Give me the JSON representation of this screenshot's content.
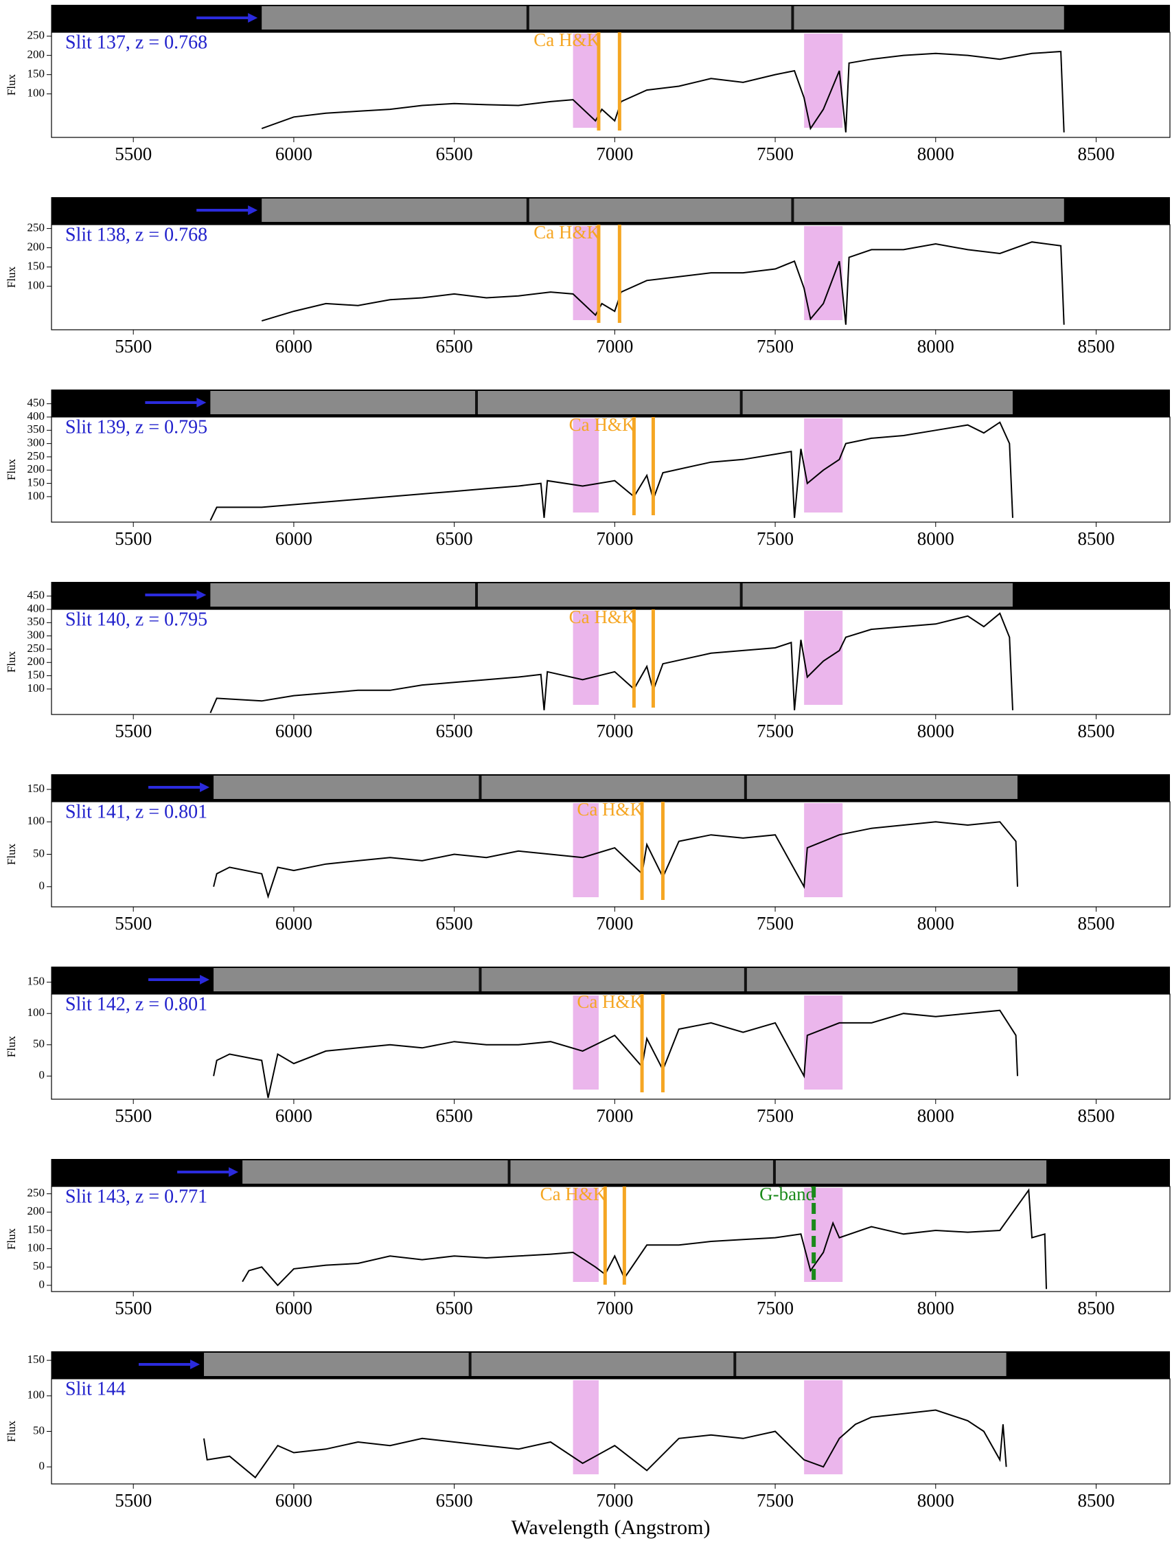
{
  "chart_data": [
    {
      "type": "line",
      "title": "Slit 137, z = 0.768",
      "ylabel": "Flux",
      "color": "#000000",
      "x": [
        5900,
        6000,
        6100,
        6200,
        6300,
        6400,
        6500,
        6600,
        6700,
        6800,
        6870,
        6940,
        6960,
        7000,
        7020,
        7100,
        7200,
        7300,
        7400,
        7500,
        7560,
        7590,
        7610,
        7650,
        7700,
        7720,
        7730,
        7800,
        7900,
        8000,
        8100,
        8200,
        8300,
        8390,
        8400
      ],
      "values": [
        10,
        40,
        50,
        55,
        60,
        70,
        75,
        72,
        70,
        80,
        85,
        30,
        60,
        30,
        80,
        110,
        120,
        140,
        130,
        150,
        160,
        90,
        10,
        60,
        160,
        0,
        180,
        190,
        200,
        205,
        200,
        190,
        205,
        210,
        0
      ],
      "xlim": [
        5245,
        8730
      ],
      "xticks": [
        5500,
        6000,
        6500,
        7000,
        7500,
        8000,
        8500
      ],
      "ylim": [
        -13,
        260
      ],
      "yticks": [
        100,
        150,
        200,
        250
      ],
      "bands": [
        [
          6870,
          6950
        ],
        [
          7590,
          7710
        ]
      ],
      "ca_hk": {
        "label": "Ca H&K",
        "lines": [
          6950,
          7015
        ]
      }
    },
    {
      "type": "line",
      "title": "Slit 138, z = 0.768",
      "ylabel": "Flux",
      "color": "#000000",
      "x": [
        5900,
        6000,
        6100,
        6200,
        6300,
        6400,
        6500,
        6600,
        6700,
        6800,
        6870,
        6940,
        6960,
        7000,
        7020,
        7100,
        7200,
        7300,
        7400,
        7500,
        7560,
        7590,
        7610,
        7650,
        7700,
        7720,
        7730,
        7800,
        7900,
        8000,
        8100,
        8200,
        8300,
        8390,
        8400
      ],
      "values": [
        10,
        35,
        55,
        50,
        65,
        70,
        80,
        70,
        75,
        85,
        80,
        25,
        55,
        35,
        85,
        115,
        125,
        135,
        135,
        145,
        165,
        95,
        15,
        55,
        165,
        0,
        175,
        195,
        195,
        210,
        195,
        185,
        215,
        205,
        0
      ],
      "xlim": [
        5245,
        8730
      ],
      "xticks": [
        5500,
        6000,
        6500,
        7000,
        7500,
        8000,
        8500
      ],
      "ylim": [
        -13,
        260
      ],
      "yticks": [
        100,
        150,
        200,
        250
      ],
      "bands": [
        [
          6870,
          6950
        ],
        [
          7590,
          7710
        ]
      ],
      "ca_hk": {
        "label": "Ca H&K",
        "lines": [
          6950,
          7015
        ]
      }
    },
    {
      "type": "line",
      "title": "Slit 139, z = 0.795",
      "ylabel": "Flux",
      "color": "#000000",
      "x": [
        5740,
        5760,
        5900,
        6000,
        6100,
        6200,
        6300,
        6400,
        6500,
        6600,
        6700,
        6770,
        6780,
        6790,
        6900,
        7000,
        7060,
        7100,
        7120,
        7150,
        7300,
        7400,
        7500,
        7550,
        7560,
        7580,
        7600,
        7650,
        7700,
        7720,
        7800,
        7900,
        8000,
        8100,
        8150,
        8200,
        8230,
        8240
      ],
      "values": [
        10,
        60,
        60,
        70,
        80,
        90,
        100,
        110,
        120,
        130,
        140,
        150,
        20,
        160,
        140,
        160,
        100,
        180,
        90,
        190,
        230,
        240,
        260,
        270,
        20,
        280,
        150,
        200,
        240,
        300,
        320,
        330,
        350,
        370,
        340,
        380,
        300,
        20
      ],
      "xlim": [
        5245,
        8730
      ],
      "xticks": [
        5500,
        6000,
        6500,
        7000,
        7500,
        8000,
        8500
      ],
      "ylim": [
        4,
        400
      ],
      "yticks": [
        100,
        150,
        200,
        250,
        300,
        350,
        400,
        450
      ],
      "bands": [
        [
          6870,
          6950
        ],
        [
          7590,
          7710
        ]
      ],
      "ca_hk": {
        "label": "Ca H&K",
        "lines": [
          7060,
          7120
        ]
      }
    },
    {
      "type": "line",
      "title": "Slit 140, z = 0.795",
      "ylabel": "Flux",
      "color": "#000000",
      "x": [
        5740,
        5760,
        5900,
        6000,
        6100,
        6200,
        6300,
        6400,
        6500,
        6600,
        6700,
        6770,
        6780,
        6790,
        6900,
        7000,
        7060,
        7100,
        7120,
        7150,
        7300,
        7400,
        7500,
        7550,
        7560,
        7580,
        7600,
        7650,
        7700,
        7720,
        7800,
        7900,
        8000,
        8100,
        8150,
        8200,
        8230,
        8240
      ],
      "values": [
        10,
        65,
        55,
        75,
        85,
        95,
        95,
        115,
        125,
        135,
        145,
        155,
        20,
        165,
        135,
        165,
        100,
        185,
        95,
        195,
        235,
        245,
        255,
        275,
        20,
        285,
        145,
        205,
        245,
        295,
        325,
        335,
        345,
        375,
        335,
        385,
        295,
        20
      ],
      "xlim": [
        5245,
        8730
      ],
      "xticks": [
        5500,
        6000,
        6500,
        7000,
        7500,
        8000,
        8500
      ],
      "ylim": [
        4,
        400
      ],
      "yticks": [
        100,
        150,
        200,
        250,
        300,
        350,
        400,
        450
      ],
      "bands": [
        [
          6870,
          6950
        ],
        [
          7590,
          7710
        ]
      ],
      "ca_hk": {
        "label": "Ca H&K",
        "lines": [
          7060,
          7120
        ]
      }
    },
    {
      "type": "line",
      "title": "Slit 141, z = 0.801",
      "ylabel": "Flux",
      "color": "#000000",
      "x": [
        5750,
        5760,
        5800,
        5900,
        5920,
        5950,
        6000,
        6100,
        6200,
        6300,
        6400,
        6500,
        6600,
        6700,
        6800,
        6900,
        7000,
        7085,
        7100,
        7150,
        7200,
        7300,
        7400,
        7500,
        7590,
        7600,
        7700,
        7800,
        7900,
        8000,
        8100,
        8200,
        8250,
        8255
      ],
      "values": [
        0,
        20,
        30,
        20,
        -15,
        30,
        25,
        35,
        40,
        45,
        40,
        50,
        45,
        55,
        50,
        45,
        60,
        20,
        65,
        15,
        70,
        80,
        75,
        80,
        0,
        60,
        80,
        90,
        95,
        100,
        95,
        100,
        70,
        0
      ],
      "xlim": [
        5245,
        8730
      ],
      "xticks": [
        5500,
        6000,
        6500,
        7000,
        7500,
        8000,
        8500
      ],
      "ylim": [
        -31,
        131
      ],
      "yticks": [
        0,
        50,
        100,
        150
      ],
      "bands": [
        [
          6870,
          6950
        ],
        [
          7590,
          7710
        ]
      ],
      "ca_hk": {
        "label": "Ca H&K",
        "lines": [
          7085,
          7150
        ]
      }
    },
    {
      "type": "line",
      "title": "Slit 142, z = 0.801",
      "ylabel": "Flux",
      "color": "#000000",
      "x": [
        5750,
        5760,
        5800,
        5900,
        5920,
        5950,
        6000,
        6100,
        6200,
        6300,
        6400,
        6500,
        6600,
        6700,
        6800,
        6900,
        7000,
        7085,
        7100,
        7150,
        7200,
        7300,
        7400,
        7500,
        7590,
        7600,
        7700,
        7800,
        7900,
        8000,
        8100,
        8200,
        8250,
        8255
      ],
      "values": [
        0,
        25,
        35,
        25,
        -35,
        35,
        20,
        40,
        45,
        50,
        45,
        55,
        50,
        50,
        55,
        40,
        65,
        15,
        60,
        10,
        75,
        85,
        70,
        85,
        0,
        65,
        85,
        85,
        100,
        95,
        100,
        105,
        65,
        0
      ],
      "xlim": [
        5245,
        8730
      ],
      "xticks": [
        5500,
        6000,
        6500,
        7000,
        7500,
        8000,
        8500
      ],
      "ylim": [
        -37,
        131
      ],
      "yticks": [
        0,
        50,
        100,
        150
      ],
      "bands": [
        [
          6870,
          6950
        ],
        [
          7590,
          7710
        ]
      ],
      "ca_hk": {
        "label": "Ca H&K",
        "lines": [
          7085,
          7150
        ]
      }
    },
    {
      "type": "line",
      "title": "Slit 143, z = 0.771",
      "ylabel": "Flux",
      "color": "#000000",
      "x": [
        5840,
        5860,
        5900,
        5950,
        6000,
        6100,
        6200,
        6300,
        6400,
        6500,
        6600,
        6700,
        6800,
        6870,
        6940,
        6970,
        7000,
        7030,
        7100,
        7200,
        7300,
        7400,
        7500,
        7580,
        7610,
        7650,
        7680,
        7700,
        7800,
        7900,
        8000,
        8100,
        8200,
        8290,
        8300,
        8340,
        8345
      ],
      "values": [
        10,
        40,
        50,
        0,
        45,
        55,
        60,
        80,
        70,
        80,
        75,
        80,
        85,
        90,
        50,
        30,
        80,
        20,
        110,
        110,
        120,
        125,
        130,
        140,
        40,
        90,
        170,
        130,
        160,
        140,
        150,
        145,
        150,
        260,
        130,
        140,
        -10
      ],
      "xlim": [
        5245,
        8730
      ],
      "xticks": [
        5500,
        6000,
        6500,
        7000,
        7500,
        8000,
        8500
      ],
      "ylim": [
        -17,
        270
      ],
      "yticks": [
        0,
        50,
        100,
        150,
        200,
        250
      ],
      "bands": [
        [
          6870,
          6950
        ],
        [
          7590,
          7710
        ]
      ],
      "ca_hk": {
        "label": "Ca H&K",
        "lines": [
          6970,
          7030
        ]
      },
      "g_band": {
        "label": "G-band",
        "line": 7620
      }
    },
    {
      "type": "line",
      "title": "Slit 144",
      "ylabel": "Flux",
      "xlabel": "Wavelength (Angstrom)",
      "color": "#000000",
      "x": [
        5720,
        5730,
        5800,
        5880,
        5950,
        6000,
        6100,
        6200,
        6300,
        6400,
        6500,
        6600,
        6700,
        6800,
        6900,
        7000,
        7100,
        7200,
        7300,
        7400,
        7500,
        7590,
        7650,
        7700,
        7750,
        7800,
        7900,
        8000,
        8100,
        8150,
        8200,
        8210,
        8220
      ],
      "values": [
        40,
        10,
        15,
        -15,
        30,
        20,
        25,
        35,
        30,
        40,
        35,
        30,
        25,
        35,
        5,
        30,
        -5,
        40,
        45,
        40,
        50,
        10,
        0,
        40,
        60,
        70,
        75,
        80,
        65,
        50,
        10,
        60,
        0
      ],
      "xlim": [
        5245,
        8730
      ],
      "xticks": [
        5500,
        6000,
        6500,
        7000,
        7500,
        8000,
        8500
      ],
      "ylim": [
        -24,
        124
      ],
      "yticks": [
        0,
        50,
        100,
        150
      ],
      "bands": [
        [
          6870,
          6950
        ],
        [
          7590,
          7710
        ]
      ]
    }
  ]
}
